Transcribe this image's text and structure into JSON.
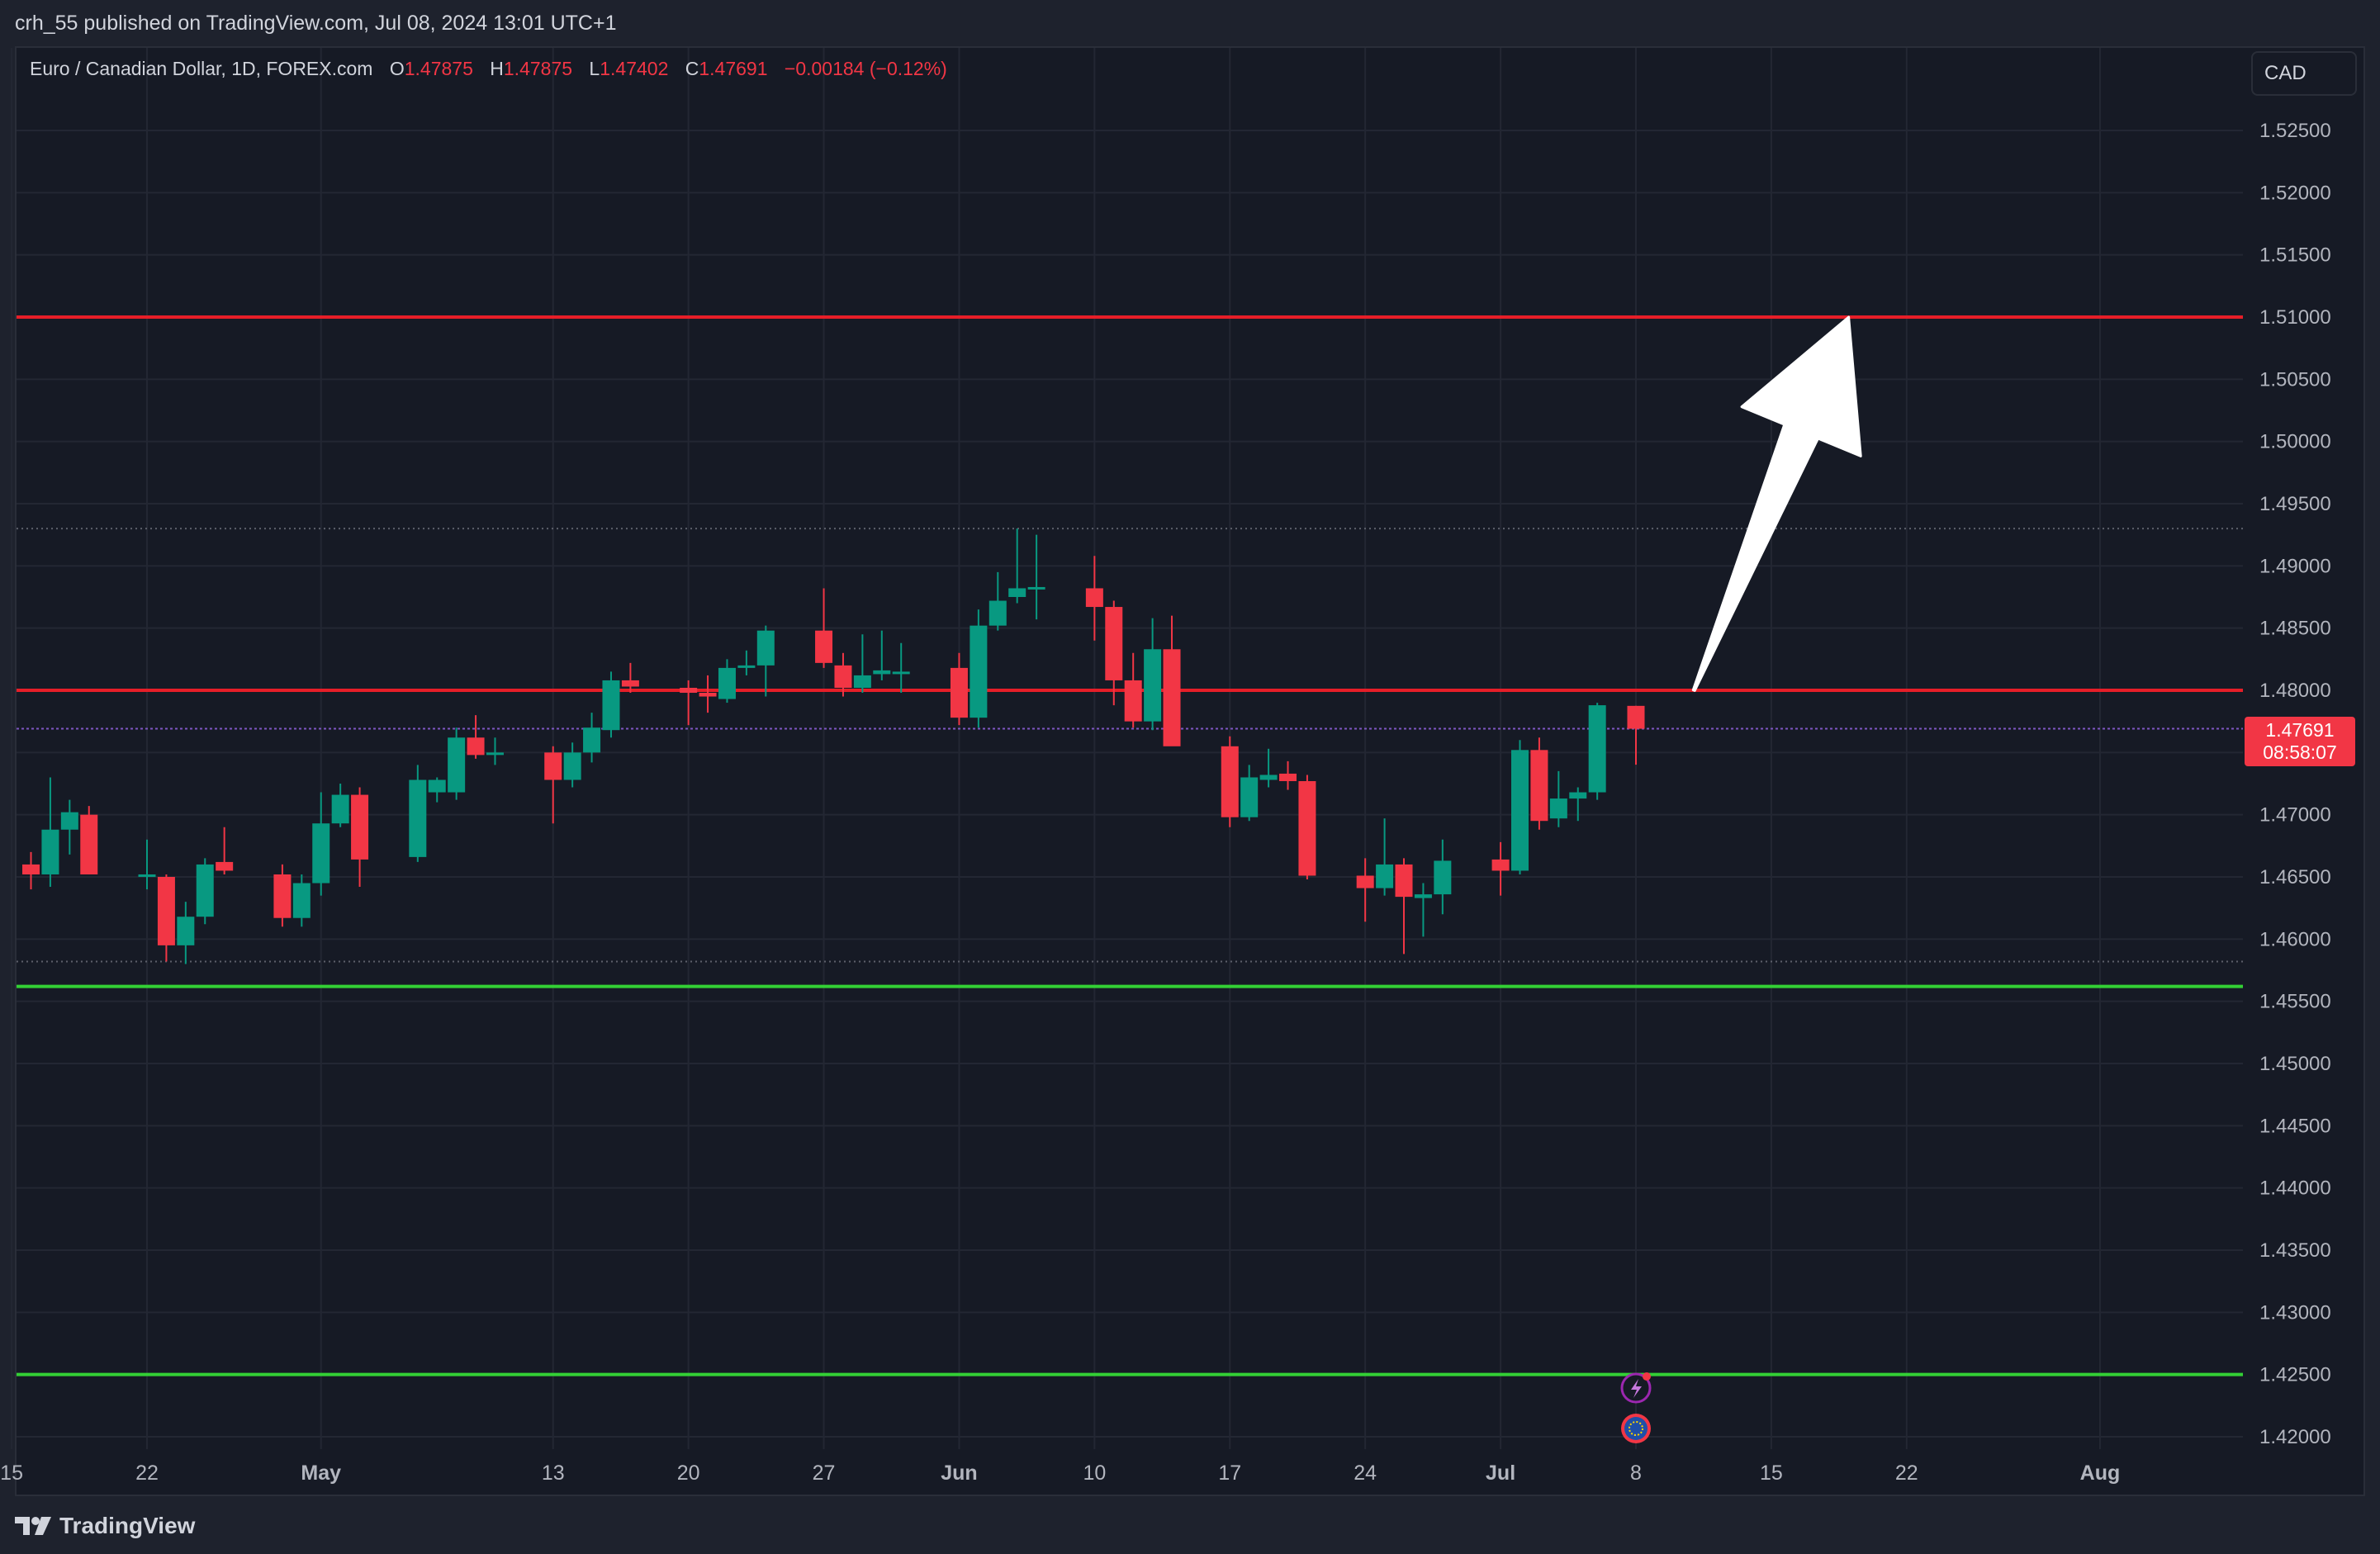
{
  "header": {
    "published": "crh_55 published on TradingView.com, Jul 08, 2024 13:01 UTC+1"
  },
  "legend": {
    "symbol": "Euro / Canadian Dollar, 1D, FOREX.com",
    "o_label": "O",
    "o_value": "1.47875",
    "h_label": "H",
    "h_value": "1.47875",
    "l_label": "L",
    "l_value": "1.47402",
    "c_label": "C",
    "c_value": "1.47691",
    "change": "−0.00184 (−0.12%)"
  },
  "currency_button": "CAD",
  "price_tag": {
    "price": "1.47691",
    "countdown": "08:58:07"
  },
  "brand": {
    "name": "TradingView"
  },
  "colors": {
    "up": "#089981",
    "down": "#f23645",
    "resistance": "#e61e28",
    "support": "#33d035",
    "background": "#161a25",
    "grid": "#232733",
    "axis_text": "#b2b5be"
  },
  "chart_data": {
    "type": "candlestick",
    "symbol": "EURCAD",
    "timeframe": "1D",
    "y_axis": {
      "range": [
        1.4185,
        1.5285
      ],
      "ticks": [
        "1.52500",
        "1.52000",
        "1.51500",
        "1.51000",
        "1.50500",
        "1.50000",
        "1.49500",
        "1.49000",
        "1.48500",
        "1.48000",
        "1.47500",
        "1.47000",
        "1.46500",
        "1.46000",
        "1.45500",
        "1.45000",
        "1.44500",
        "1.44000",
        "1.43500",
        "1.43000",
        "1.42500",
        "1.42000"
      ]
    },
    "x_axis": {
      "labels": [
        {
          "text": "15",
          "date": "2024-04-15",
          "bold": false
        },
        {
          "text": "22",
          "date": "2024-04-22",
          "bold": false
        },
        {
          "text": "May",
          "date": "2024-05-01",
          "bold": true
        },
        {
          "text": "13",
          "date": "2024-05-13",
          "bold": false
        },
        {
          "text": "20",
          "date": "2024-05-20",
          "bold": false
        },
        {
          "text": "27",
          "date": "2024-05-27",
          "bold": false
        },
        {
          "text": "Jun",
          "date": "2024-06-03",
          "bold": true
        },
        {
          "text": "10",
          "date": "2024-06-10",
          "bold": false
        },
        {
          "text": "17",
          "date": "2024-06-17",
          "bold": false
        },
        {
          "text": "24",
          "date": "2024-06-24",
          "bold": false
        },
        {
          "text": "Jul",
          "date": "2024-07-01",
          "bold": true
        },
        {
          "text": "8",
          "date": "2024-07-08",
          "bold": false
        },
        {
          "text": "15",
          "date": "2024-07-15",
          "bold": false
        },
        {
          "text": "22",
          "date": "2024-07-22",
          "bold": false
        },
        {
          "text": "Aug",
          "date": "2024-08-01",
          "bold": true
        }
      ]
    },
    "candles": [
      {
        "date": "2024-04-16",
        "o": 1.466,
        "h": 1.467,
        "l": 1.464,
        "c": 1.4652
      },
      {
        "date": "2024-04-17",
        "o": 1.4652,
        "h": 1.473,
        "l": 1.4642,
        "c": 1.4688
      },
      {
        "date": "2024-04-18",
        "o": 1.4688,
        "h": 1.4712,
        "l": 1.4668,
        "c": 1.4702
      },
      {
        "date": "2024-04-19",
        "o": 1.47,
        "h": 1.4707,
        "l": 1.4652,
        "c": 1.4652
      },
      {
        "date": "2024-04-22",
        "o": 1.4652,
        "h": 1.468,
        "l": 1.464,
        "c": 1.4652
      },
      {
        "date": "2024-04-23",
        "o": 1.465,
        "h": 1.4652,
        "l": 1.4582,
        "c": 1.4595
      },
      {
        "date": "2024-04-24",
        "o": 1.4595,
        "h": 1.463,
        "l": 1.458,
        "c": 1.4618
      },
      {
        "date": "2024-04-25",
        "o": 1.4618,
        "h": 1.4665,
        "l": 1.4612,
        "c": 1.466
      },
      {
        "date": "2024-04-26",
        "o": 1.4662,
        "h": 1.469,
        "l": 1.4652,
        "c": 1.4655
      },
      {
        "date": "2024-04-29",
        "o": 1.4652,
        "h": 1.466,
        "l": 1.461,
        "c": 1.4617
      },
      {
        "date": "2024-04-30",
        "o": 1.4617,
        "h": 1.4652,
        "l": 1.461,
        "c": 1.4645
      },
      {
        "date": "2024-05-01",
        "o": 1.4645,
        "h": 1.4718,
        "l": 1.4635,
        "c": 1.4693
      },
      {
        "date": "2024-05-02",
        "o": 1.4693,
        "h": 1.4725,
        "l": 1.469,
        "c": 1.4716
      },
      {
        "date": "2024-05-03",
        "o": 1.4716,
        "h": 1.4722,
        "l": 1.4642,
        "c": 1.4664
      },
      {
        "date": "2024-05-06",
        "o": 1.4666,
        "h": 1.474,
        "l": 1.4662,
        "c": 1.4728
      },
      {
        "date": "2024-05-07",
        "o": 1.4718,
        "h": 1.473,
        "l": 1.471,
        "c": 1.4728
      },
      {
        "date": "2024-05-08",
        "o": 1.4718,
        "h": 1.477,
        "l": 1.4712,
        "c": 1.4762
      },
      {
        "date": "2024-05-09",
        "o": 1.4762,
        "h": 1.478,
        "l": 1.4745,
        "c": 1.4748
      },
      {
        "date": "2024-05-10",
        "o": 1.475,
        "h": 1.4762,
        "l": 1.474,
        "c": 1.475
      },
      {
        "date": "2024-05-13",
        "o": 1.475,
        "h": 1.4755,
        "l": 1.4693,
        "c": 1.4728
      },
      {
        "date": "2024-05-14",
        "o": 1.4728,
        "h": 1.4758,
        "l": 1.4722,
        "c": 1.475
      },
      {
        "date": "2024-05-15",
        "o": 1.475,
        "h": 1.4782,
        "l": 1.4742,
        "c": 1.477
      },
      {
        "date": "2024-05-16",
        "o": 1.4768,
        "h": 1.4815,
        "l": 1.4762,
        "c": 1.4808
      },
      {
        "date": "2024-05-17",
        "o": 1.4808,
        "h": 1.4822,
        "l": 1.4798,
        "c": 1.4803
      },
      {
        "date": "2024-05-20",
        "o": 1.4802,
        "h": 1.4808,
        "l": 1.4772,
        "c": 1.4798
      },
      {
        "date": "2024-05-21",
        "o": 1.4798,
        "h": 1.4812,
        "l": 1.4782,
        "c": 1.4795
      },
      {
        "date": "2024-05-22",
        "o": 1.4793,
        "h": 1.4825,
        "l": 1.479,
        "c": 1.4818
      },
      {
        "date": "2024-05-23",
        "o": 1.4818,
        "h": 1.4832,
        "l": 1.4812,
        "c": 1.482
      },
      {
        "date": "2024-05-24",
        "o": 1.482,
        "h": 1.4852,
        "l": 1.4795,
        "c": 1.4848
      },
      {
        "date": "2024-05-27",
        "o": 1.4848,
        "h": 1.4882,
        "l": 1.4818,
        "c": 1.4822
      },
      {
        "date": "2024-05-28",
        "o": 1.482,
        "h": 1.483,
        "l": 1.4795,
        "c": 1.4802
      },
      {
        "date": "2024-05-29",
        "o": 1.4802,
        "h": 1.4845,
        "l": 1.4798,
        "c": 1.4812
      },
      {
        "date": "2024-05-30",
        "o": 1.4813,
        "h": 1.4848,
        "l": 1.4808,
        "c": 1.4816
      },
      {
        "date": "2024-05-31",
        "o": 1.4815,
        "h": 1.4838,
        "l": 1.4798,
        "c": 1.4815
      },
      {
        "date": "2024-06-03",
        "o": 1.4818,
        "h": 1.483,
        "l": 1.4772,
        "c": 1.4778
      },
      {
        "date": "2024-06-04",
        "o": 1.4778,
        "h": 1.4865,
        "l": 1.477,
        "c": 1.4852
      },
      {
        "date": "2024-06-05",
        "o": 1.4852,
        "h": 1.4895,
        "l": 1.4848,
        "c": 1.4872
      },
      {
        "date": "2024-06-06",
        "o": 1.4875,
        "h": 1.493,
        "l": 1.487,
        "c": 1.4882
      },
      {
        "date": "2024-06-07",
        "o": 1.4882,
        "h": 1.4925,
        "l": 1.4857,
        "c": 1.4883
      },
      {
        "date": "2024-06-10",
        "o": 1.4882,
        "h": 1.4908,
        "l": 1.484,
        "c": 1.4867
      },
      {
        "date": "2024-06-11",
        "o": 1.4867,
        "h": 1.4872,
        "l": 1.4788,
        "c": 1.4808
      },
      {
        "date": "2024-06-12",
        "o": 1.4808,
        "h": 1.483,
        "l": 1.477,
        "c": 1.4775
      },
      {
        "date": "2024-06-13",
        "o": 1.4775,
        "h": 1.4858,
        "l": 1.4768,
        "c": 1.4833
      },
      {
        "date": "2024-06-14",
        "o": 1.4833,
        "h": 1.486,
        "l": 1.4758,
        "c": 1.4755
      },
      {
        "date": "2024-06-17",
        "o": 1.4755,
        "h": 1.4763,
        "l": 1.469,
        "c": 1.4698
      },
      {
        "date": "2024-06-18",
        "o": 1.4698,
        "h": 1.474,
        "l": 1.4695,
        "c": 1.473
      },
      {
        "date": "2024-06-19",
        "o": 1.4728,
        "h": 1.4753,
        "l": 1.4722,
        "c": 1.4732
      },
      {
        "date": "2024-06-20",
        "o": 1.4733,
        "h": 1.4743,
        "l": 1.472,
        "c": 1.4727
      },
      {
        "date": "2024-06-21",
        "o": 1.4727,
        "h": 1.4732,
        "l": 1.4648,
        "c": 1.4651
      },
      {
        "date": "2024-06-24",
        "o": 1.4651,
        "h": 1.4665,
        "l": 1.4614,
        "c": 1.4641
      },
      {
        "date": "2024-06-25",
        "o": 1.4641,
        "h": 1.4697,
        "l": 1.4635,
        "c": 1.466
      },
      {
        "date": "2024-06-26",
        "o": 1.466,
        "h": 1.4665,
        "l": 1.4588,
        "c": 1.4634
      },
      {
        "date": "2024-06-27",
        "o": 1.4633,
        "h": 1.4645,
        "l": 1.4602,
        "c": 1.4636
      },
      {
        "date": "2024-06-28",
        "o": 1.4636,
        "h": 1.468,
        "l": 1.462,
        "c": 1.4663
      },
      {
        "date": "2024-07-01",
        "o": 1.4664,
        "h": 1.4678,
        "l": 1.4635,
        "c": 1.4655
      },
      {
        "date": "2024-07-02",
        "o": 1.4655,
        "h": 1.476,
        "l": 1.4652,
        "c": 1.4752
      },
      {
        "date": "2024-07-03",
        "o": 1.4752,
        "h": 1.4762,
        "l": 1.4688,
        "c": 1.4695
      },
      {
        "date": "2024-07-04",
        "o": 1.4697,
        "h": 1.4735,
        "l": 1.469,
        "c": 1.4713
      },
      {
        "date": "2024-07-05",
        "o": 1.4713,
        "h": 1.4722,
        "l": 1.4695,
        "c": 1.4718
      },
      {
        "date": "2024-07-06",
        "o": 1.4718,
        "h": 1.479,
        "l": 1.4712,
        "c": 1.4788
      },
      {
        "date": "2024-07-08",
        "o": 1.47875,
        "h": 1.47875,
        "l": 1.47402,
        "c": 1.47691
      }
    ],
    "levels": [
      {
        "price": 1.51,
        "color": "#e61e28"
      },
      {
        "price": 1.48,
        "color": "#e61e28"
      },
      {
        "price": 1.4562,
        "color": "#33d035"
      },
      {
        "price": 1.425,
        "color": "#33d035"
      }
    ],
    "dotted_levels": [
      1.493,
      1.4582
    ],
    "current_price_line": 1.47691,
    "arrow": {
      "from_date": "2024-07-11",
      "from_price": 1.48,
      "to_date": "2024-07-19",
      "to_price": 1.51
    }
  }
}
